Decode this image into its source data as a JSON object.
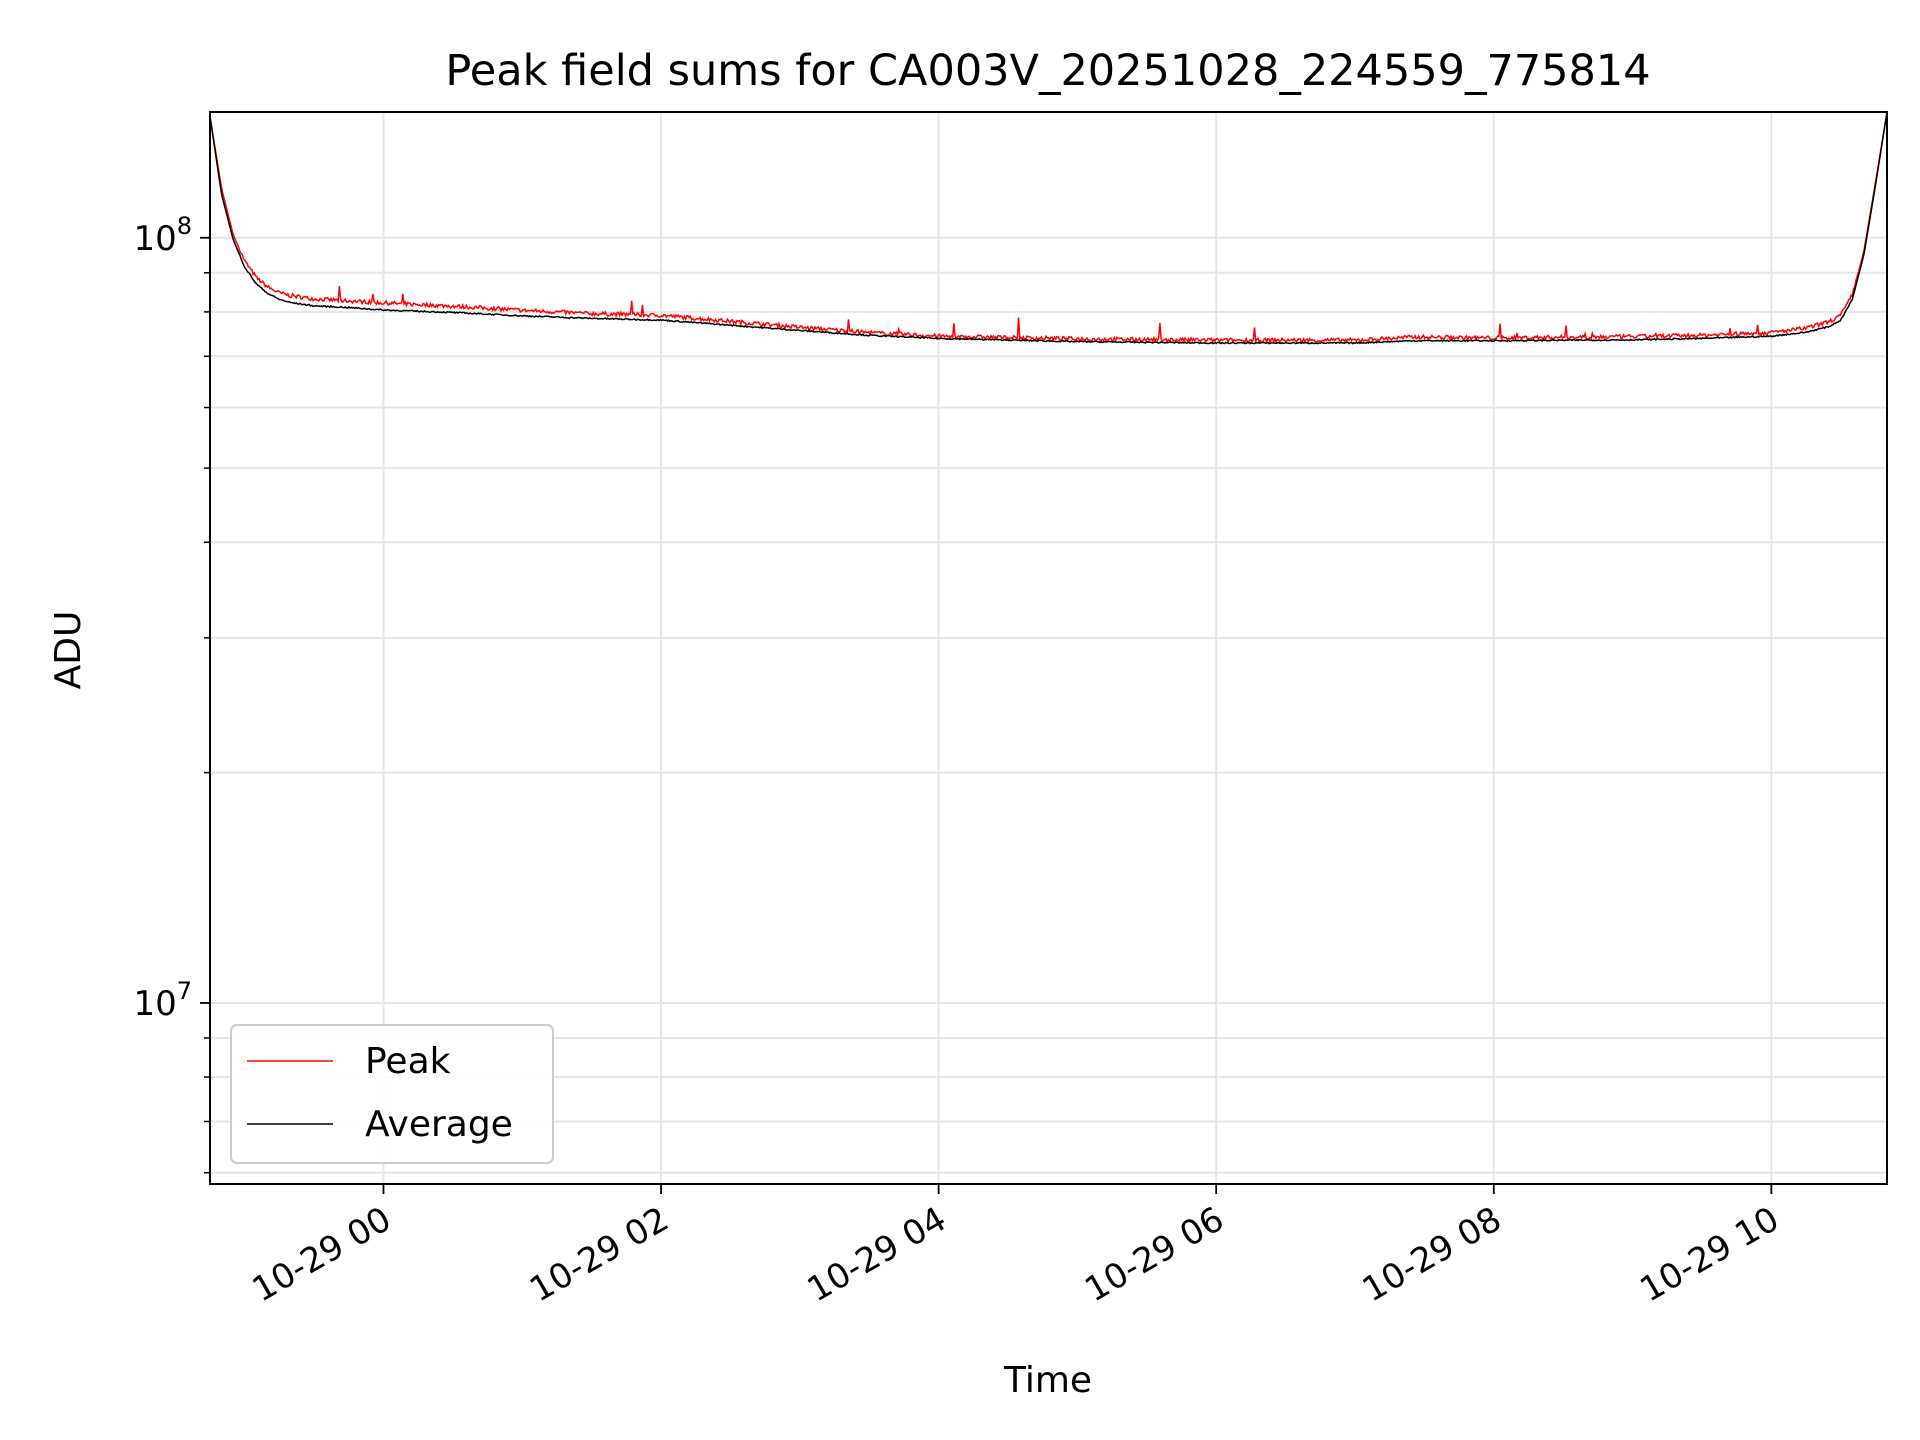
{
  "chart_data": {
    "type": "line",
    "title": "Peak field sums for CA003V_20251028_224559_775814",
    "xlabel": "Time",
    "ylabel": "ADU",
    "x_range": [
      "2025-10-28 22:45",
      "2025-10-29 10:50"
    ],
    "y_scale": "log",
    "ylim": [
      5800000,
      146000000
    ],
    "x_ticks": [
      {
        "value": "2025-10-29 00:00",
        "label": "10-29 00"
      },
      {
        "value": "2025-10-29 02:00",
        "label": "10-29 02"
      },
      {
        "value": "2025-10-29 04:00",
        "label": "10-29 04"
      },
      {
        "value": "2025-10-29 06:00",
        "label": "10-29 06"
      },
      {
        "value": "2025-10-29 08:00",
        "label": "10-29 08"
      },
      {
        "value": "2025-10-29 10:00",
        "label": "10-29 10"
      }
    ],
    "y_ticks": [
      {
        "value": 10000000,
        "base": "10",
        "exp": "7"
      },
      {
        "value": 100000000,
        "base": "10",
        "exp": "8"
      }
    ],
    "grid": true,
    "legend_position": "lower-left",
    "series": [
      {
        "name": "Peak",
        "color": "#ff0000",
        "x": [
          "2025-10-28 22:45",
          "2025-10-28 22:50",
          "2025-10-28 22:55",
          "2025-10-28 23:00",
          "2025-10-28 23:05",
          "2025-10-28 23:10",
          "2025-10-28 23:15",
          "2025-10-28 23:20",
          "2025-10-28 23:30",
          "2025-10-28 23:45",
          "2025-10-29 00:00",
          "2025-10-29 00:30",
          "2025-10-29 01:00",
          "2025-10-29 01:30",
          "2025-10-29 02:00",
          "2025-10-29 02:30",
          "2025-10-29 03:00",
          "2025-10-29 03:30",
          "2025-10-29 04:00",
          "2025-10-29 05:00",
          "2025-10-29 06:00",
          "2025-10-29 07:00",
          "2025-10-29 07:25",
          "2025-10-29 08:00",
          "2025-10-29 09:00",
          "2025-10-29 09:30",
          "2025-10-29 10:00",
          "2025-10-29 10:15",
          "2025-10-29 10:25",
          "2025-10-29 10:30",
          "2025-10-29 10:35",
          "2025-10-29 10:40",
          "2025-10-29 10:45",
          "2025-10-29 10:50"
        ],
        "y": [
          144000000,
          116000000,
          101000000,
          93000000,
          88500000,
          86000000,
          84500000,
          83800000,
          83000000,
          82500000,
          82000000,
          81200000,
          80200000,
          79400000,
          79000000,
          77600000,
          76200000,
          75000000,
          74200000,
          73600000,
          73300000,
          73300000,
          74000000,
          73800000,
          74100000,
          74400000,
          75000000,
          76000000,
          77500000,
          79000000,
          84000000,
          96000000,
          118000000,
          146000000
        ]
      },
      {
        "name": "Average",
        "color": "#000000",
        "x": [
          "2025-10-28 22:45",
          "2025-10-28 22:50",
          "2025-10-28 22:55",
          "2025-10-28 23:00",
          "2025-10-28 23:05",
          "2025-10-28 23:10",
          "2025-10-28 23:15",
          "2025-10-28 23:20",
          "2025-10-28 23:30",
          "2025-10-28 23:45",
          "2025-10-29 00:00",
          "2025-10-29 00:30",
          "2025-10-29 01:00",
          "2025-10-29 01:30",
          "2025-10-29 02:00",
          "2025-10-29 02:30",
          "2025-10-29 03:00",
          "2025-10-29 03:30",
          "2025-10-29 04:00",
          "2025-10-29 05:00",
          "2025-10-29 06:00",
          "2025-10-29 07:00",
          "2025-10-29 07:25",
          "2025-10-29 08:00",
          "2025-10-29 09:00",
          "2025-10-29 09:30",
          "2025-10-29 10:00",
          "2025-10-29 10:15",
          "2025-10-29 10:25",
          "2025-10-29 10:30",
          "2025-10-29 10:35",
          "2025-10-29 10:40",
          "2025-10-29 10:45",
          "2025-10-29 10:50"
        ],
        "y": [
          144000000,
          114000000,
          99500000,
          91500000,
          87000000,
          84500000,
          83000000,
          82200000,
          81400000,
          81000000,
          80400000,
          79800000,
          79000000,
          78400000,
          78000000,
          76800000,
          75600000,
          74500000,
          73800000,
          73100000,
          72800000,
          72800000,
          73300000,
          73300000,
          73500000,
          73800000,
          74300000,
          75200000,
          76500000,
          78000000,
          83000000,
          95000000,
          117000000,
          146000000
        ]
      }
    ]
  }
}
